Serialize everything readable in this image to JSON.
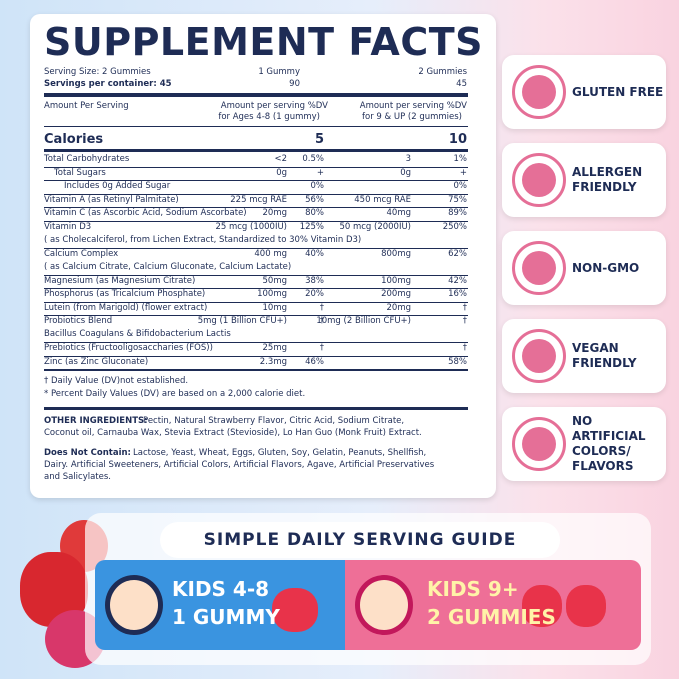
{
  "facts": {
    "title": "SUPPLEMENT FACTS",
    "serving": [
      [
        "Serving Size: 2 Gummies",
        "1 Gummy",
        "2 Gummies"
      ],
      [
        "Servings per container: 45",
        "90",
        "45"
      ]
    ],
    "header": [
      "Amount Per Serving",
      "Amount per serving %DV",
      "for Ages 4-8 (1 gummy)",
      "Amount per serving %DV",
      "for 9 & UP (2 gummies)"
    ],
    "calories": [
      "Calories",
      "5",
      "10"
    ],
    "rows": [
      {
        "name": "Total Carbohydrates",
        "amt1": "<2",
        "dv1": "0.5%",
        "amt2": "3",
        "dv2": "1%"
      },
      {
        "name": "Total Sugars",
        "amt1": "0g",
        "dv1": "+",
        "amt2": "0g",
        "dv2": "+"
      },
      {
        "name": "Includes 0g Added Sugar",
        "dv1": "0%",
        "dv2": "0%"
      },
      {
        "name": "Vitamin A (as Retinyl Palmitate)",
        "amt1": "225 mcg RAE",
        "dv1": "56%",
        "amt2": "450 mcg RAE",
        "dv2": "75%"
      },
      {
        "name": "Vitamin C (as Ascorbic Acid, Sodium Ascorbate)",
        "amt1": "20mg",
        "dv1": "80%",
        "amt2": "40mg",
        "dv2": "89%"
      },
      {
        "name": "Vitamin D3",
        "note": "( as Cholecalciferol, from Lichen Extract, Standardized to 30% Vitamin D3)",
        "amt1": "25 mcg (1000IU)",
        "dv1": "125%",
        "amt2": "50 mcg (2000IU)",
        "dv2": "250%"
      },
      {
        "name": "Calcium Complex",
        "note": "( as Calcium Citrate, Calcium Gluconate, Calcium Lactate)",
        "amt1": "400 mg",
        "dv1": "40%",
        "amt2": "800mg",
        "dv2": "62%"
      },
      {
        "name": "Magnesium (as Magnesium Citrate)",
        "amt1": "50mg",
        "dv1": "38%",
        "amt2": "100mg",
        "dv2": "42%"
      },
      {
        "name": "Phosphorus (as Tricalcium Phosphate)",
        "amt1": "100mg",
        "dv1": "20%",
        "amt2": "200mg",
        "dv2": "16%"
      },
      {
        "name": "Lutein (from Marigold) (flower extract)",
        "amt1": "10mg",
        "dv1": "†",
        "amt2": "20mg",
        "dv2": "†"
      },
      {
        "name": "Probiotics Blend",
        "note": "Bacillus Coagulans & Bifidobacterium Lactis",
        "amt1": "5mg (1 Billion CFU+)",
        "dv1": "†",
        "amt2": "10mg (2 Billion CFU+)",
        "dv2": "†"
      },
      {
        "name": "Prebiotics (Fructooligosaccharies (FOS))",
        "amt1": "25mg",
        "dv1": "†",
        "dv2": "†"
      },
      {
        "name": "Zinc (as Zinc Gluconate)",
        "amt1": "2.3mg",
        "dv1": "46%",
        "dv2": "58%"
      }
    ],
    "footnotes": [
      "† Daily Value (DV)not established.",
      "*  Percent Daily Values (DV) are based on a 2,000 calorie diet."
    ],
    "ingredients_label": "OTHER INGREDIENTS:",
    "ingredients": [
      "Pectin, Natural Strawberry Flavor, Citric Acid, Sodium Citrate,",
      "Coconut oil, Carnauba Wax, Stevia Extract (Stevioside), Lo Han Guo (Monk Fruit) Extract."
    ],
    "excludes_label": "Does Not Contain:",
    "excludes": [
      "Lactose, Yeast, Wheat, Eggs, Gluten, Soy, Gelatin, Peanuts, Shellfish,",
      "Dairy. Artificial Sweeteners, Artificial Colors, Artificial Flavors, Agave, Artificial Preservatives",
      "and Salicylates."
    ]
  },
  "badges": [
    [
      "GLUTEN FREE"
    ],
    [
      "ALLERGEN",
      "FRIENDLY"
    ],
    [
      "NON-GMO"
    ],
    [
      "VEGAN",
      "FRIENDLY"
    ],
    [
      "NO ARTIFICIAL",
      "COLORS/",
      "FLAVORS"
    ]
  ],
  "guide": {
    "title": "SIMPLE DAILY SERVING GUIDE",
    "kids": [
      [
        "KIDS 4-8",
        "1 GUMMY"
      ],
      [
        "KIDS 9+",
        "2 GUMMIES"
      ]
    ]
  }
}
